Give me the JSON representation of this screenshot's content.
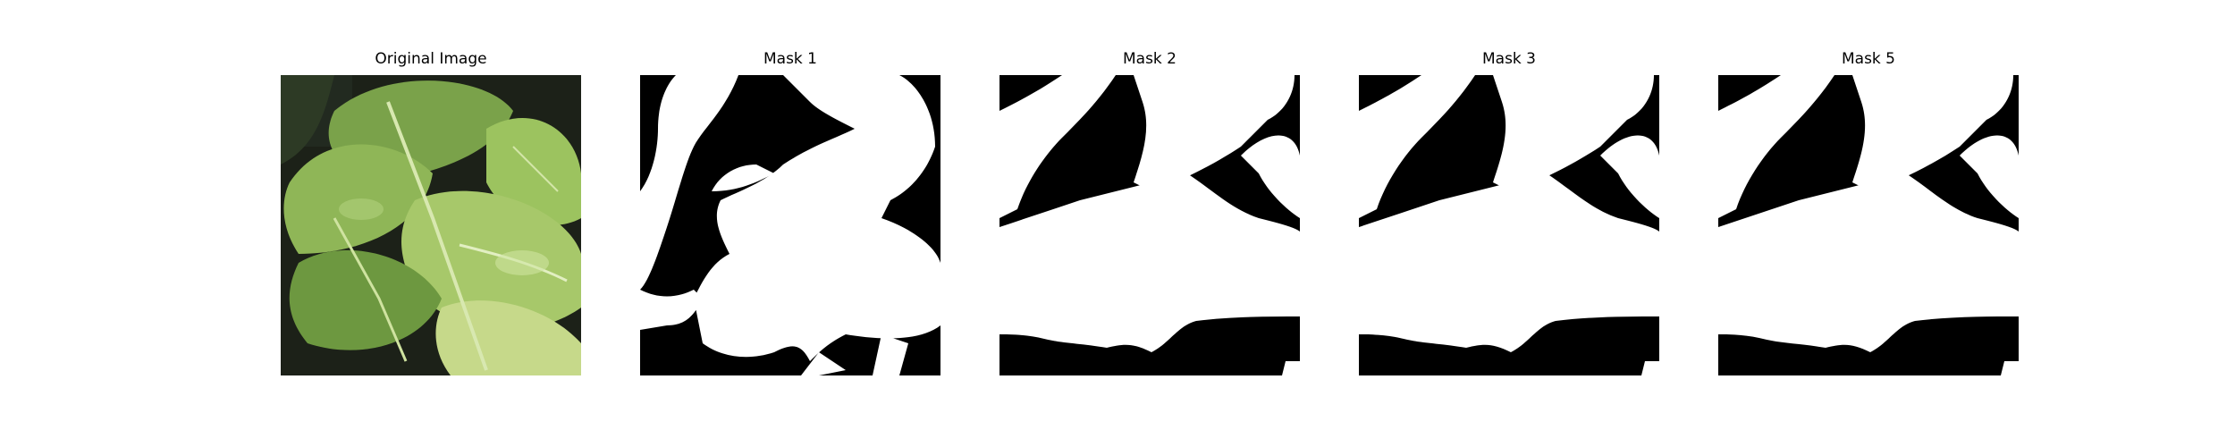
{
  "figure": {
    "panels": [
      {
        "title": "Original Image",
        "kind": "photo",
        "subject": "leaf-photo"
      },
      {
        "title": "Mask 1",
        "kind": "mask",
        "variant": "m1"
      },
      {
        "title": "Mask 2",
        "kind": "mask",
        "variant": "m2"
      },
      {
        "title": "Mask 3",
        "kind": "mask",
        "variant": "m3"
      },
      {
        "title": "Mask 5",
        "kind": "mask",
        "variant": "m5"
      }
    ],
    "colors": {
      "mask_fg": "#ffffff",
      "mask_bg": "#000000",
      "leaf_dark": "#4f7a2e",
      "leaf_light": "#b9d77d"
    }
  }
}
